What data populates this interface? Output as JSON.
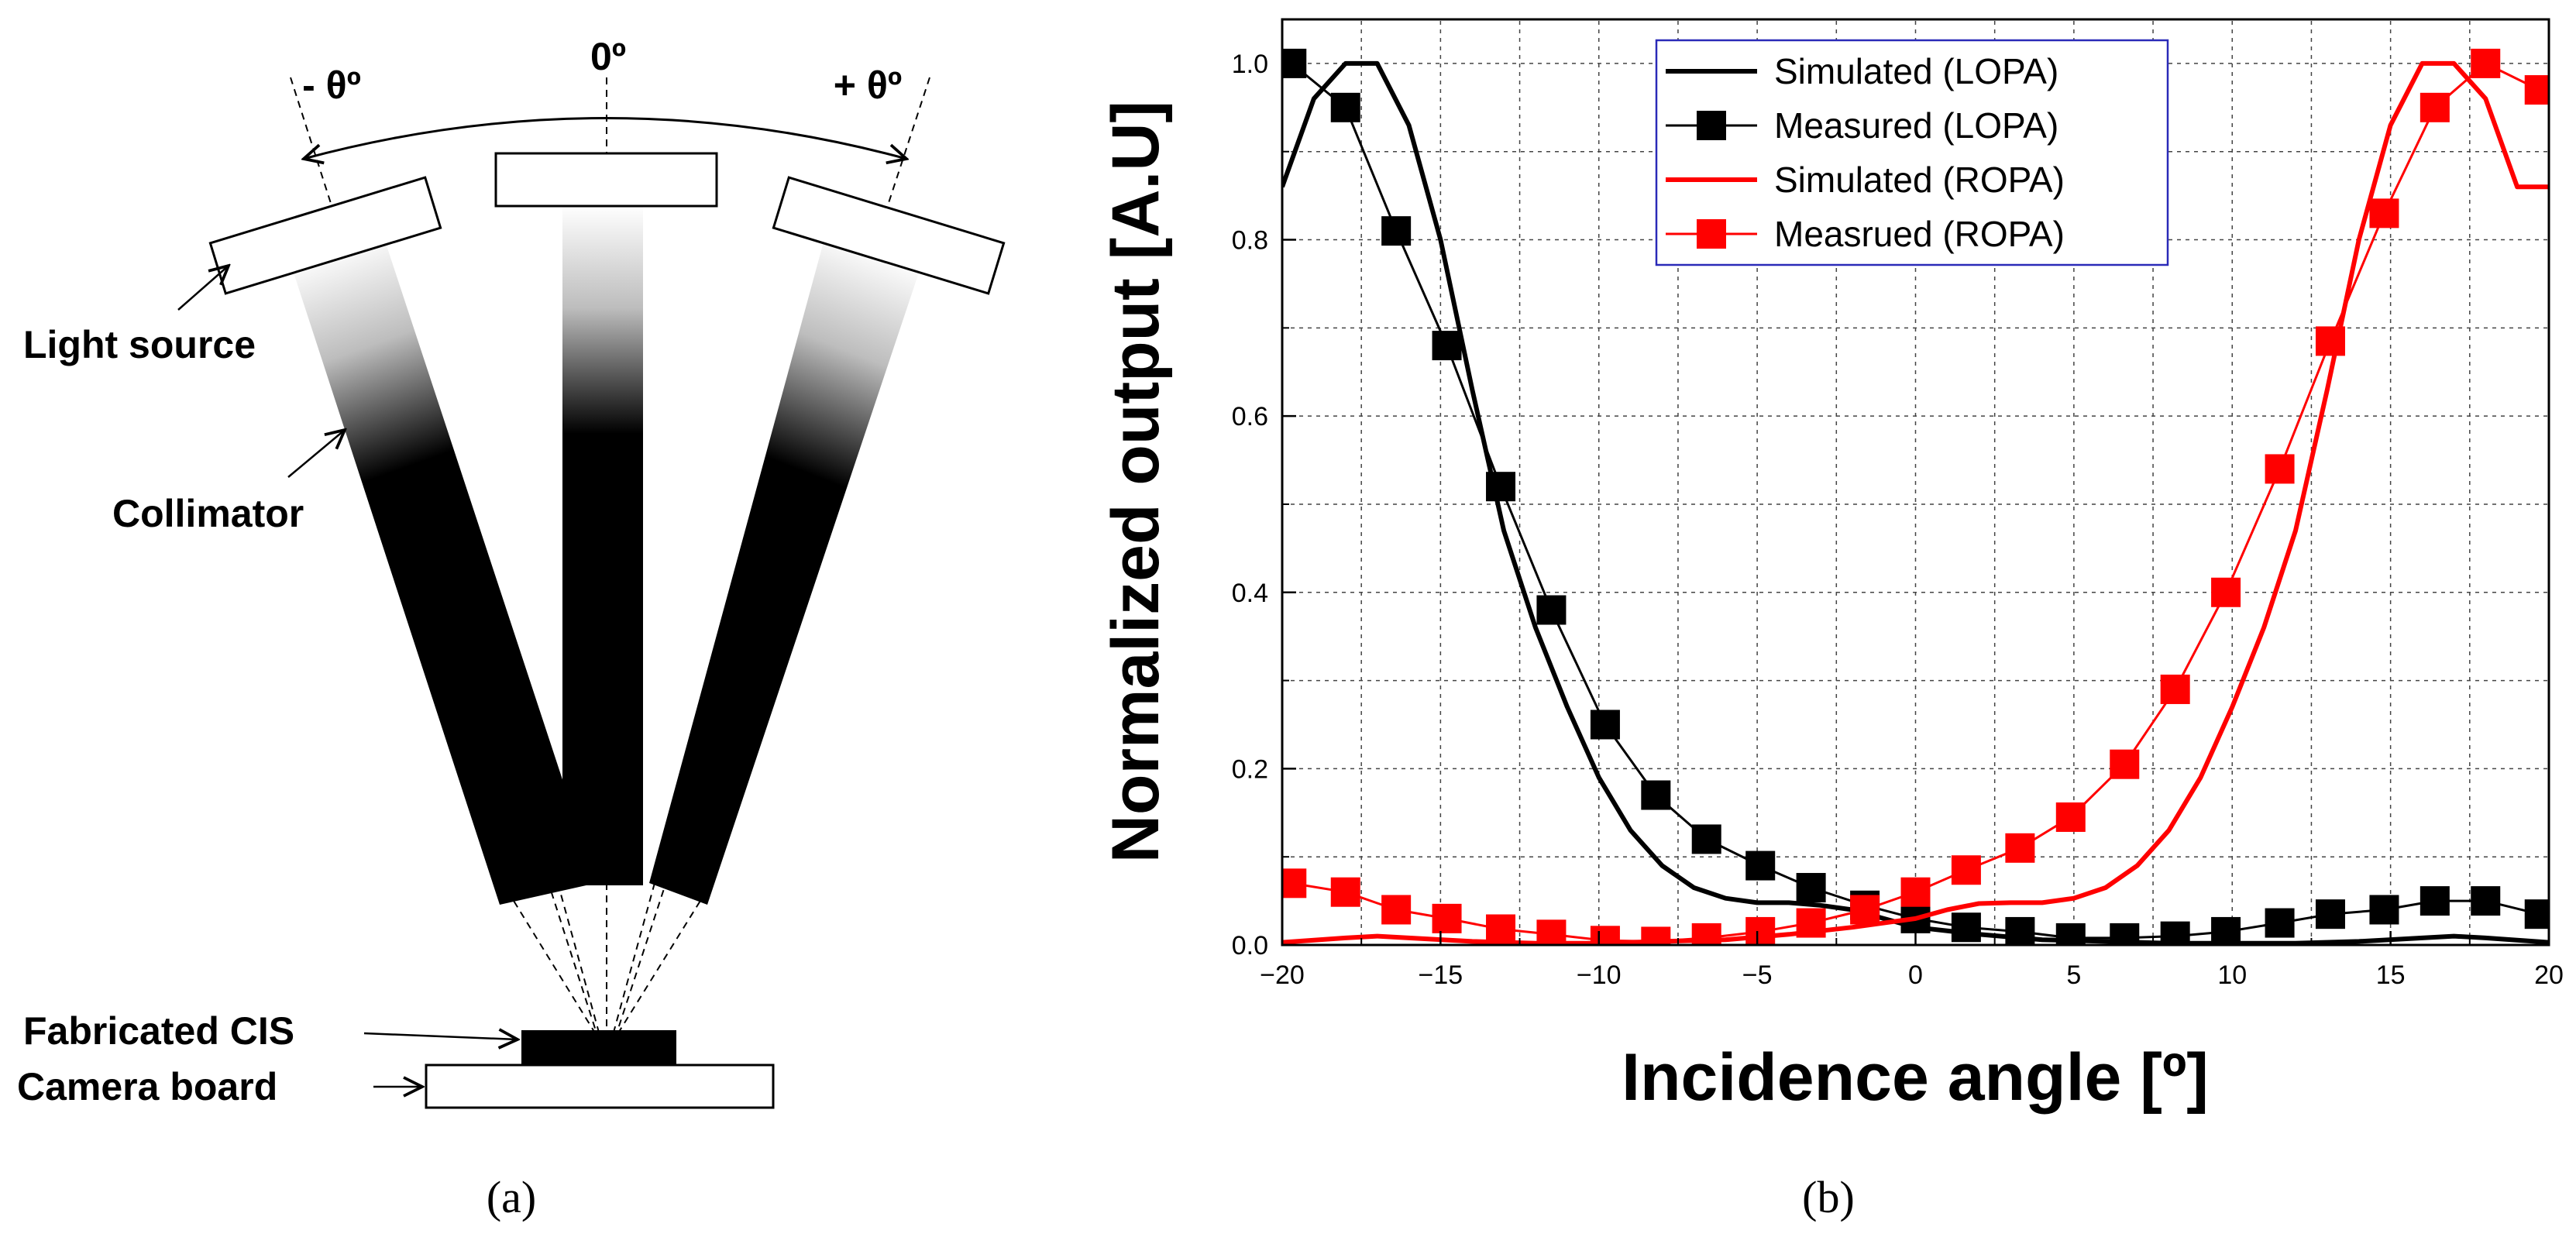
{
  "diagram": {
    "angle_center": "0º",
    "angle_left": "- θº",
    "angle_right": "+ θº",
    "labels": {
      "light_source": "Light source",
      "collimator": "Collimator",
      "fabricated_cis": "Fabricated CIS",
      "camera_board": "Camera board"
    },
    "panel_label": "(a)"
  },
  "chart_panel_label": "(b)",
  "chart_data": {
    "type": "line",
    "xlabel": "Incidence angle [º]",
    "ylabel": "Normalized output [A.U]",
    "xlim": [
      -20,
      20
    ],
    "ylim": [
      0,
      1.05
    ],
    "xticks": [
      -20,
      -15,
      -10,
      -5,
      0,
      5,
      10,
      15,
      20
    ],
    "xtick_labels": [
      "−20",
      "−15",
      "−10",
      "−5",
      "0",
      "5",
      "10",
      "15",
      "20"
    ],
    "yticks": [
      0.0,
      0.2,
      0.4,
      0.6,
      0.8,
      1.0
    ],
    "ytick_labels": [
      "0.0",
      "0.2",
      "0.4",
      "0.6",
      "0.8",
      "1.0"
    ],
    "grid": true,
    "legend_position": "top-center",
    "series": [
      {
        "name": "Simulated (LOPA)",
        "style": "line",
        "color": "#000000",
        "x": [
          -20,
          -19,
          -18,
          -17,
          -16,
          -15,
          -14,
          -13,
          -12,
          -11,
          -10,
          -9,
          -8,
          -7,
          -6,
          -5,
          -4,
          -3,
          -2,
          -1,
          0,
          2,
          4,
          6,
          8,
          10,
          12,
          14,
          16,
          17,
          18,
          20
        ],
        "y": [
          0.86,
          0.96,
          1.0,
          1.0,
          0.93,
          0.8,
          0.63,
          0.47,
          0.36,
          0.27,
          0.19,
          0.13,
          0.09,
          0.065,
          0.053,
          0.048,
          0.048,
          0.045,
          0.04,
          0.03,
          0.02,
          0.012,
          0.006,
          0.004,
          0.002,
          0.002,
          0.002,
          0.004,
          0.008,
          0.01,
          0.008,
          0.003
        ]
      },
      {
        "name": "Measured (LOPA)",
        "style": "line+square",
        "color": "#000000",
        "x": [
          -19.7,
          -18,
          -16.4,
          -14.8,
          -13.1,
          -11.5,
          -9.8,
          -8.2,
          -6.6,
          -4.9,
          -3.3,
          -1.6,
          0,
          1.6,
          3.3,
          4.9,
          6.6,
          8.2,
          9.8,
          11.5,
          13.1,
          14.8,
          16.4,
          18,
          19.7
        ],
        "y": [
          1.0,
          0.95,
          0.81,
          0.68,
          0.52,
          0.38,
          0.25,
          0.17,
          0.12,
          0.09,
          0.065,
          0.045,
          0.03,
          0.02,
          0.015,
          0.008,
          0.008,
          0.01,
          0.015,
          0.025,
          0.035,
          0.04,
          0.05,
          0.05,
          0.035
        ]
      },
      {
        "name": "Simulated (ROPA)",
        "style": "line",
        "color": "#ff0000",
        "x": [
          -20,
          -18,
          -17,
          -16,
          -14,
          -12,
          -10,
          -8,
          -6,
          -4,
          -2,
          0,
          1,
          2,
          3,
          4,
          5,
          6,
          7,
          8,
          9,
          10,
          11,
          12,
          13,
          14,
          15,
          16,
          17,
          18,
          19,
          20
        ],
        "y": [
          0.003,
          0.008,
          0.01,
          0.008,
          0.004,
          0.002,
          0.002,
          0.004,
          0.006,
          0.012,
          0.02,
          0.03,
          0.04,
          0.047,
          0.048,
          0.048,
          0.053,
          0.065,
          0.09,
          0.13,
          0.19,
          0.27,
          0.36,
          0.47,
          0.63,
          0.8,
          0.93,
          1.0,
          1.0,
          0.96,
          0.86,
          0.86
        ]
      },
      {
        "name": "Measrued (ROPA)",
        "style": "line+square",
        "color": "#ff0000",
        "x": [
          -19.7,
          -18,
          -16.4,
          -14.8,
          -13.1,
          -11.5,
          -9.8,
          -8.2,
          -6.6,
          -4.9,
          -3.3,
          -1.6,
          0,
          1.6,
          3.3,
          4.9,
          6.6,
          8.2,
          9.8,
          11.5,
          13.1,
          14.8,
          16.4,
          18,
          19.7
        ],
        "y": [
          0.07,
          0.06,
          0.04,
          0.03,
          0.018,
          0.012,
          0.005,
          0.004,
          0.008,
          0.015,
          0.025,
          0.04,
          0.06,
          0.085,
          0.11,
          0.145,
          0.205,
          0.29,
          0.4,
          0.54,
          0.685,
          0.83,
          0.95,
          1.0,
          0.97
        ]
      }
    ]
  }
}
